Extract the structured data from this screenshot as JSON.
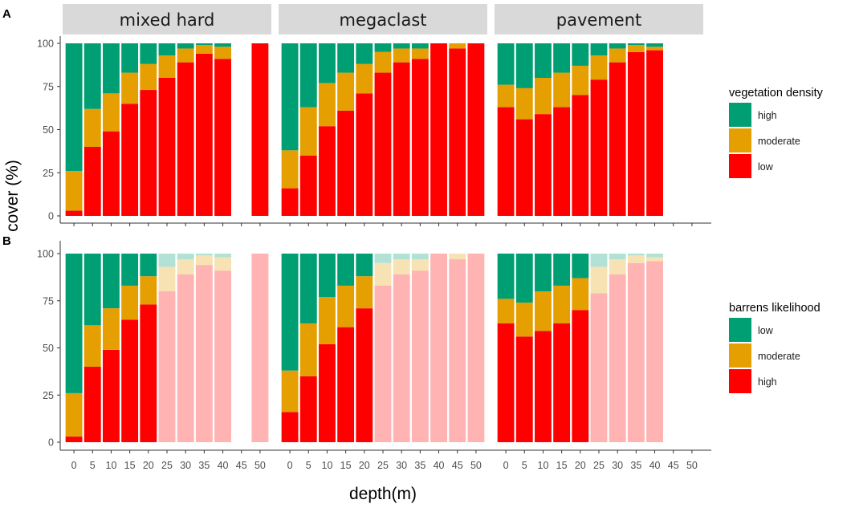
{
  "chart_data": {
    "type": "bar",
    "stacked": true,
    "ylabel": "cover (%)",
    "xlabel": "depth(m)",
    "ylim": [
      0,
      100
    ],
    "yticks": [
      0,
      25,
      50,
      75,
      100
    ],
    "xticks": [
      0,
      5,
      10,
      15,
      20,
      25,
      30,
      35,
      40,
      45,
      50
    ],
    "facets": [
      "mixed hard",
      "megaclast",
      "pavement"
    ],
    "colors": {
      "green": "#009E73",
      "orange": "#E69F00",
      "red": "#FF0000"
    },
    "panels": [
      {
        "tag": "A",
        "legend_title": "vegetation density",
        "legend": [
          "high",
          "moderate",
          "low"
        ],
        "faded_from_depth": null
      },
      {
        "tag": "B",
        "legend_title": "barrens likelihood",
        "legend": [
          "low",
          "moderate",
          "high"
        ],
        "faded_from_depth": 25
      }
    ],
    "data": {
      "mixed hard": [
        {
          "depth": 0,
          "red": 3,
          "orange": 23
        },
        {
          "depth": 5,
          "red": 40,
          "orange": 22
        },
        {
          "depth": 10,
          "red": 49,
          "orange": 22
        },
        {
          "depth": 15,
          "red": 65,
          "orange": 18
        },
        {
          "depth": 20,
          "red": 73,
          "orange": 15
        },
        {
          "depth": 25,
          "red": 80,
          "orange": 13
        },
        {
          "depth": 30,
          "red": 89,
          "orange": 8
        },
        {
          "depth": 35,
          "red": 94,
          "orange": 5
        },
        {
          "depth": 40,
          "red": 91,
          "orange": 7
        },
        {
          "depth": 50,
          "red": 100,
          "orange": 0
        }
      ],
      "megaclast": [
        {
          "depth": 0,
          "red": 16,
          "orange": 22
        },
        {
          "depth": 5,
          "red": 35,
          "orange": 28
        },
        {
          "depth": 10,
          "red": 52,
          "orange": 25
        },
        {
          "depth": 15,
          "red": 61,
          "orange": 22
        },
        {
          "depth": 20,
          "red": 71,
          "orange": 17
        },
        {
          "depth": 25,
          "red": 83,
          "orange": 12
        },
        {
          "depth": 30,
          "red": 89,
          "orange": 8
        },
        {
          "depth": 35,
          "red": 91,
          "orange": 6
        },
        {
          "depth": 40,
          "red": 100,
          "orange": 0
        },
        {
          "depth": 45,
          "red": 97,
          "orange": 3
        },
        {
          "depth": 50,
          "red": 100,
          "orange": 0
        }
      ],
      "pavement": [
        {
          "depth": 0,
          "red": 63,
          "orange": 13
        },
        {
          "depth": 5,
          "red": 56,
          "orange": 18
        },
        {
          "depth": 10,
          "red": 59,
          "orange": 21
        },
        {
          "depth": 15,
          "red": 63,
          "orange": 20
        },
        {
          "depth": 20,
          "red": 70,
          "orange": 17
        },
        {
          "depth": 25,
          "red": 79,
          "orange": 14
        },
        {
          "depth": 30,
          "red": 89,
          "orange": 8
        },
        {
          "depth": 35,
          "red": 95,
          "orange": 4
        },
        {
          "depth": 40,
          "red": 96,
          "orange": 2
        }
      ]
    }
  }
}
